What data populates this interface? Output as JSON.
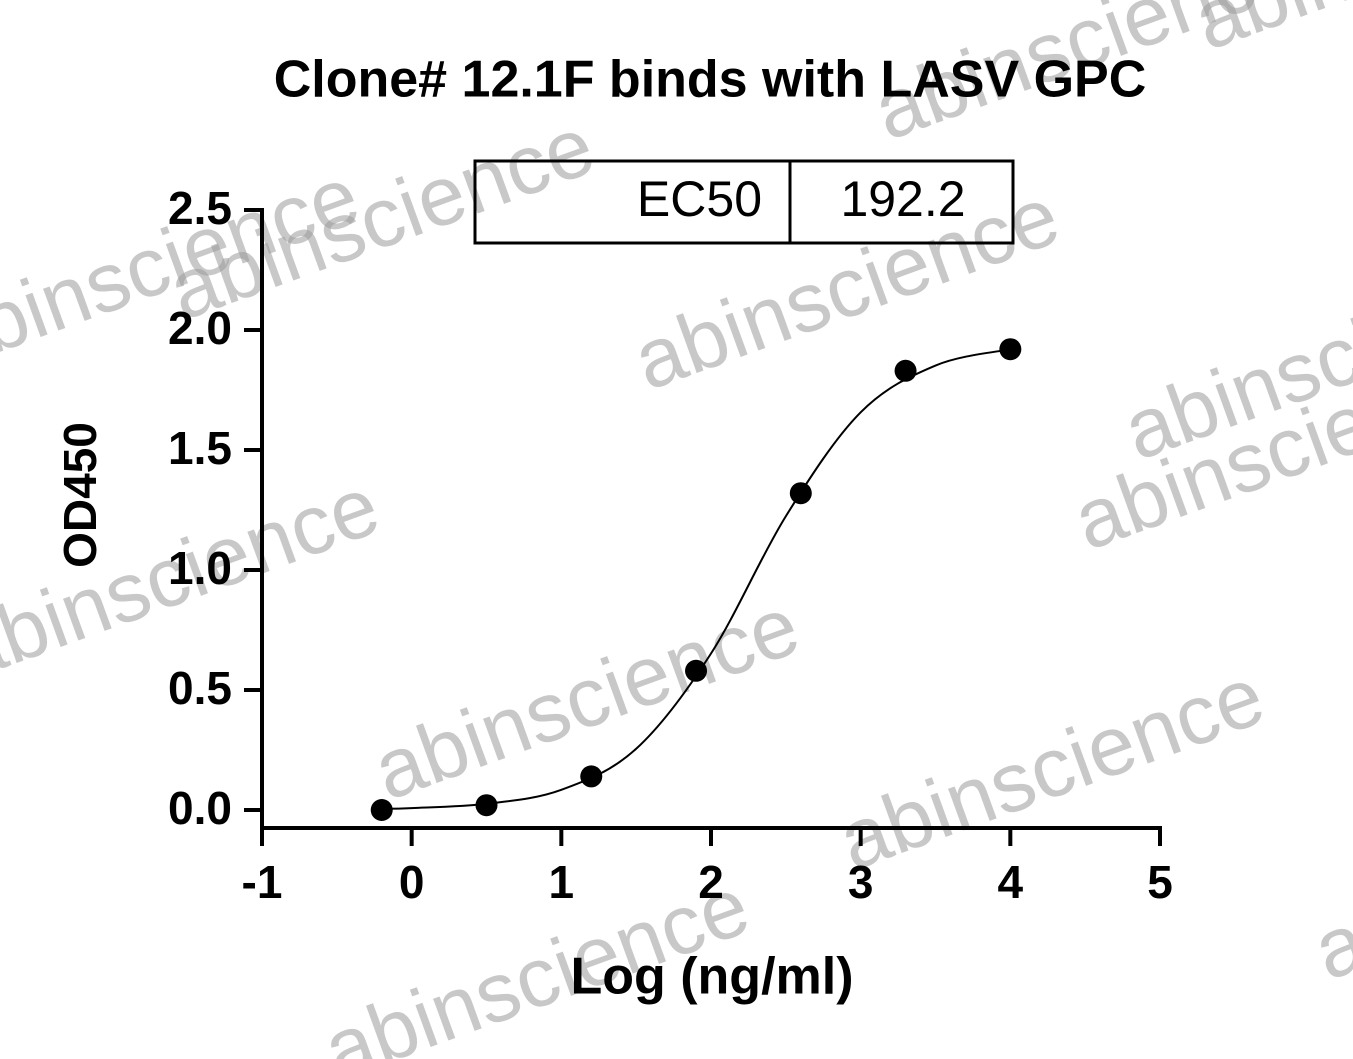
{
  "chart_data": {
    "type": "scatter",
    "title": "Clone# 12.1F binds with LASV GPC",
    "x_label": "Log (ng/ml)",
    "y_label": "OD450",
    "watermark": "abinscience",
    "table": {
      "label": "EC50",
      "value": "192.2"
    },
    "xlim": [
      -1,
      5
    ],
    "xticks": [
      -1,
      0,
      1,
      2,
      3,
      4,
      5
    ],
    "ylim": [
      0,
      2.5
    ],
    "yticks": [
      {
        "value": 0,
        "label": "0.0"
      },
      0.5,
      {
        "value": 1,
        "label": "1.0"
      },
      1.5,
      {
        "value": 2,
        "label": "2.0"
      },
      2.5
    ],
    "color": "#000000",
    "x": [
      -0.2,
      0.5,
      1.2,
      1.9,
      2.6,
      3.3,
      4.0
    ],
    "values": [
      0,
      0.02,
      0.14,
      0.58,
      1.32,
      1.83,
      1.92
    ],
    "fit": {
      "x": [
        -0.2,
        0,
        0.5,
        1,
        1.5,
        2,
        2.5,
        3,
        3.5,
        4
      ],
      "values": [
        0.005,
        0.008,
        0.026,
        0.084,
        0.255,
        0.652,
        1.224,
        1.657,
        1.852,
        1.92
      ]
    }
  }
}
